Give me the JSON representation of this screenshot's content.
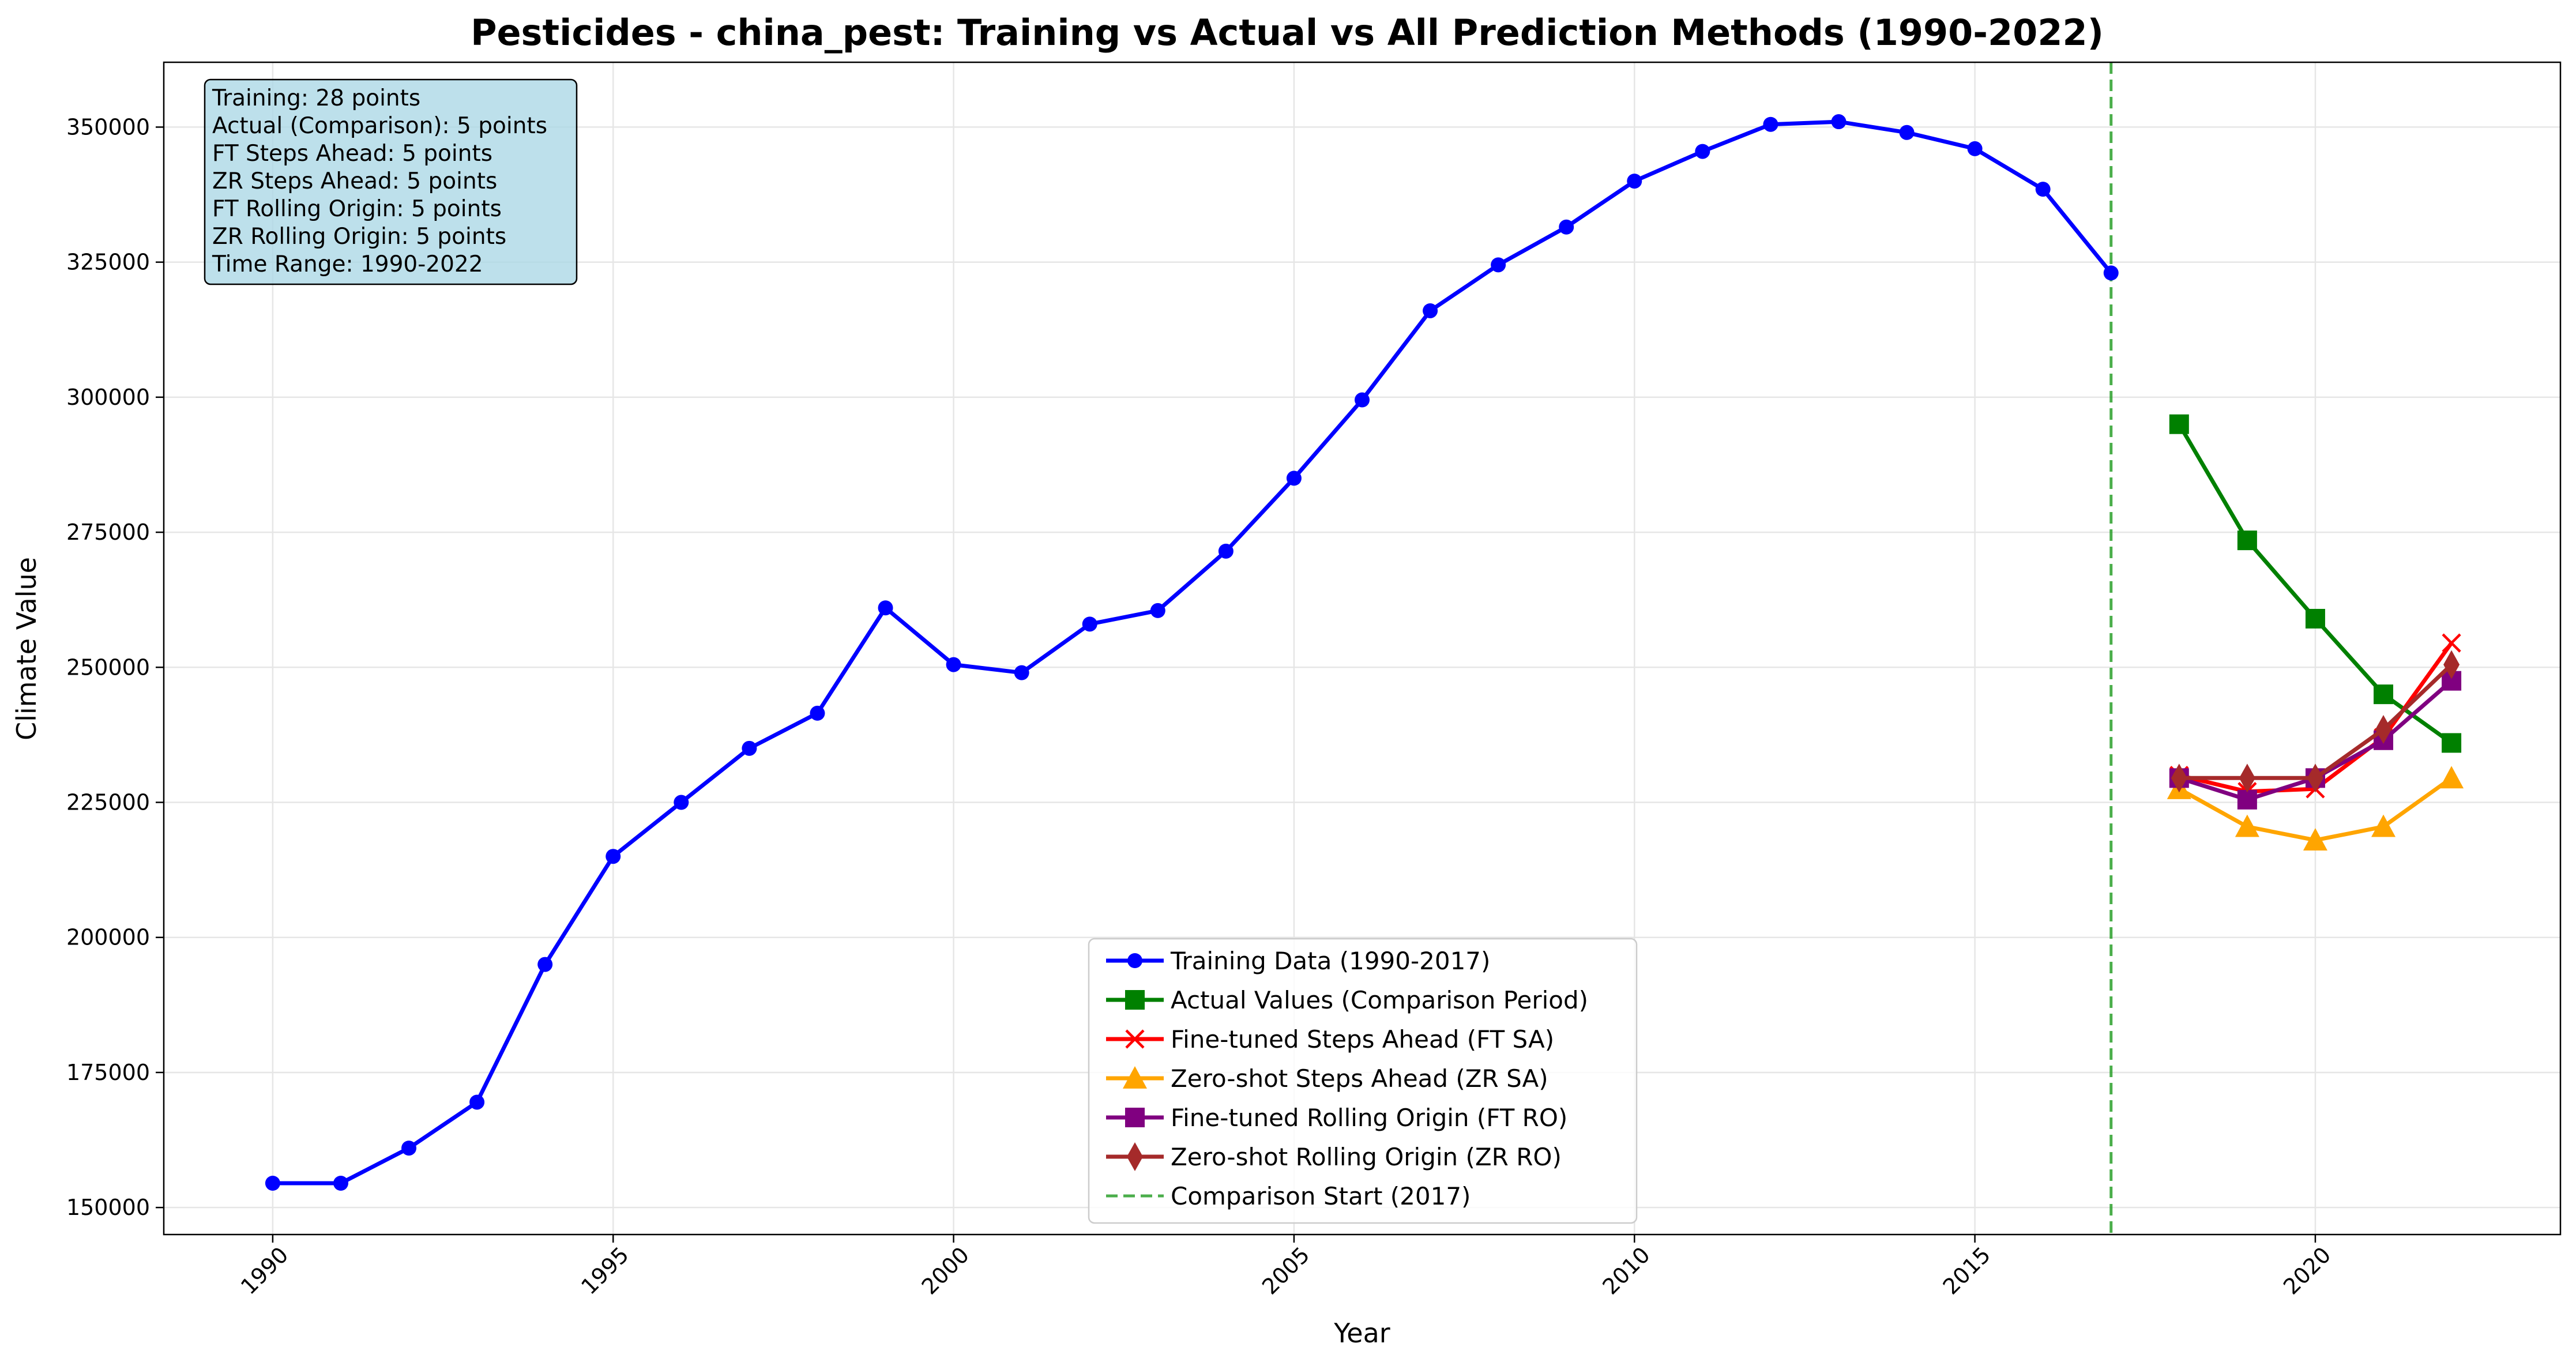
{
  "chart_data": {
    "type": "line",
    "title": "Pesticides - china_pest: Training vs Actual vs All Prediction Methods (1990-2022)",
    "xlabel": "Year",
    "ylabel": "Climate Value",
    "xlim": [
      1988.4,
      2023.6
    ],
    "ylim": [
      145000,
      362000
    ],
    "x_ticks": [
      1990,
      1995,
      2000,
      2005,
      2010,
      2015,
      2020
    ],
    "y_ticks": [
      150000,
      175000,
      200000,
      225000,
      250000,
      275000,
      300000,
      325000,
      350000
    ],
    "grid": true,
    "legend_position": "bottom-center",
    "info_box": [
      "Training: 28 points",
      "Actual (Comparison): 5 points",
      "FT Steps Ahead: 5 points",
      "ZR Steps Ahead: 5 points",
      "FT Rolling Origin: 5 points",
      "ZR Rolling Origin: 5 points",
      "Time Range: 1990-2022"
    ],
    "vline": {
      "x": 2017,
      "label": "Comparison Start (2017)",
      "color": "#2ca02c"
    },
    "series": [
      {
        "name": "Training Data (1990-2017)",
        "color": "#0000ff",
        "marker": "circle",
        "x": [
          1990,
          1991,
          1992,
          1993,
          1994,
          1995,
          1996,
          1997,
          1998,
          1999,
          2000,
          2001,
          2002,
          2003,
          2004,
          2005,
          2006,
          2007,
          2008,
          2009,
          2010,
          2011,
          2012,
          2013,
          2014,
          2015,
          2016,
          2017
        ],
        "y": [
          154500,
          154500,
          161000,
          169500,
          195000,
          215000,
          225000,
          235000,
          241500,
          261000,
          250500,
          249000,
          258000,
          260500,
          271500,
          285000,
          299500,
          316000,
          324500,
          331500,
          340000,
          345500,
          350500,
          351000,
          349000,
          346000,
          338500,
          323000
        ]
      },
      {
        "name": "Actual Values (Comparison Period)",
        "color": "#008000",
        "marker": "square",
        "x": [
          2018,
          2019,
          2020,
          2021,
          2022
        ],
        "y": [
          295000,
          273500,
          259000,
          245000,
          236000
        ]
      },
      {
        "name": "Fine-tuned Steps Ahead (FT SA)",
        "color": "#ff0000",
        "marker": "x",
        "x": [
          2018,
          2019,
          2020,
          2021,
          2022
        ],
        "y": [
          230000,
          227000,
          227500,
          237000,
          254500
        ]
      },
      {
        "name": "Zero-shot Steps Ahead (ZR SA)",
        "color": "#ffa500",
        "marker": "triangle",
        "x": [
          2018,
          2019,
          2020,
          2021,
          2022
        ],
        "y": [
          227500,
          220500,
          218000,
          220500,
          229500
        ]
      },
      {
        "name": "Fine-tuned Rolling Origin (FT RO)",
        "color": "#800080",
        "marker": "square",
        "x": [
          2018,
          2019,
          2020,
          2021,
          2022
        ],
        "y": [
          229500,
          225500,
          229500,
          236500,
          247500
        ]
      },
      {
        "name": "Zero-shot Rolling Origin (ZR RO)",
        "color": "#a52a2a",
        "marker": "diamond",
        "x": [
          2018,
          2019,
          2020,
          2021,
          2022
        ],
        "y": [
          229500,
          229500,
          229500,
          238500,
          250500
        ]
      }
    ]
  }
}
